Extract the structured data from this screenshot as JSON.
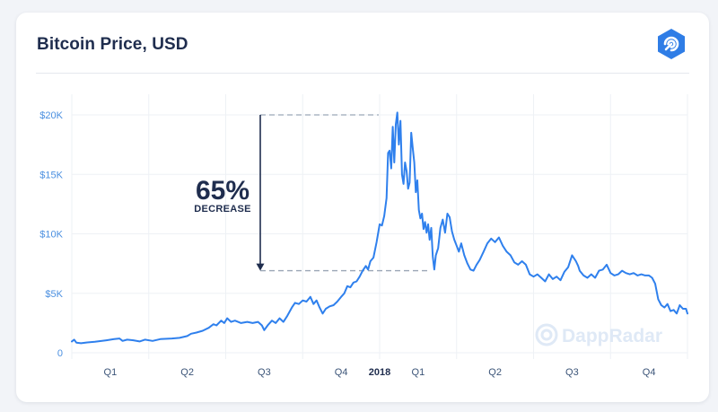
{
  "header": {
    "title": "Bitcoin Price, USD",
    "logo_icon": "dappradar-logo-icon"
  },
  "watermark": {
    "text": "DappRadar"
  },
  "annotation": {
    "value": "65%",
    "label": "DECREASE"
  },
  "colors": {
    "line": "#2f80ed",
    "title": "#1f2d4e",
    "y_tick": "#4a8fe0",
    "brand": "#2f7de6"
  },
  "chart_data": {
    "type": "line",
    "title": "Bitcoin Price, USD",
    "xlabel": "",
    "ylabel": "",
    "ylim": [
      0,
      20000
    ],
    "y_ticks": [
      {
        "value": 0,
        "label": "0"
      },
      {
        "value": 5000,
        "label": "$5K"
      },
      {
        "value": 10000,
        "label": "$10K"
      },
      {
        "value": 15000,
        "label": "$15K"
      },
      {
        "value": 20000,
        "label": "$20K"
      }
    ],
    "x_ticks": [
      {
        "t": 0.5,
        "label": "Q1",
        "bold": false
      },
      {
        "t": 1.5,
        "label": "Q2",
        "bold": false
      },
      {
        "t": 2.5,
        "label": "Q3",
        "bold": false
      },
      {
        "t": 3.5,
        "label": "Q4",
        "bold": false
      },
      {
        "t": 4.0,
        "label": "2018",
        "bold": true
      },
      {
        "t": 4.5,
        "label": "Q1",
        "bold": false
      },
      {
        "t": 5.5,
        "label": "Q2",
        "bold": false
      },
      {
        "t": 6.5,
        "label": "Q3",
        "bold": false
      },
      {
        "t": 7.5,
        "label": "Q4",
        "bold": false
      }
    ],
    "x_range": [
      0,
      8
    ],
    "grid": true,
    "legend": "none",
    "annotation_range": {
      "high": 20000,
      "low": 6900
    },
    "series": [
      {
        "points": [
          [
            0.0,
            950
          ],
          [
            0.03,
            1100
          ],
          [
            0.06,
            850
          ],
          [
            0.12,
            800
          ],
          [
            0.2,
            870
          ],
          [
            0.3,
            920
          ],
          [
            0.45,
            1050
          ],
          [
            0.55,
            1150
          ],
          [
            0.62,
            1200
          ],
          [
            0.66,
            1000
          ],
          [
            0.72,
            1100
          ],
          [
            0.8,
            1050
          ],
          [
            0.88,
            950
          ],
          [
            0.95,
            1100
          ],
          [
            1.05,
            1000
          ],
          [
            1.15,
            1150
          ],
          [
            1.3,
            1200
          ],
          [
            1.4,
            1250
          ],
          [
            1.5,
            1400
          ],
          [
            1.55,
            1600
          ],
          [
            1.62,
            1700
          ],
          [
            1.7,
            1850
          ],
          [
            1.78,
            2100
          ],
          [
            1.84,
            2400
          ],
          [
            1.88,
            2300
          ],
          [
            1.94,
            2700
          ],
          [
            1.98,
            2500
          ],
          [
            2.02,
            2900
          ],
          [
            2.07,
            2600
          ],
          [
            2.12,
            2700
          ],
          [
            2.2,
            2500
          ],
          [
            2.28,
            2600
          ],
          [
            2.35,
            2500
          ],
          [
            2.42,
            2600
          ],
          [
            2.47,
            2300
          ],
          [
            2.5,
            1900
          ],
          [
            2.55,
            2350
          ],
          [
            2.6,
            2700
          ],
          [
            2.65,
            2500
          ],
          [
            2.7,
            2900
          ],
          [
            2.75,
            2600
          ],
          [
            2.8,
            3100
          ],
          [
            2.86,
            3800
          ],
          [
            2.9,
            4200
          ],
          [
            2.95,
            4100
          ],
          [
            3.0,
            4400
          ],
          [
            3.05,
            4300
          ],
          [
            3.1,
            4700
          ],
          [
            3.14,
            4100
          ],
          [
            3.18,
            4400
          ],
          [
            3.22,
            3800
          ],
          [
            3.26,
            3300
          ],
          [
            3.3,
            3700
          ],
          [
            3.35,
            3900
          ],
          [
            3.4,
            4000
          ],
          [
            3.45,
            4300
          ],
          [
            3.5,
            4700
          ],
          [
            3.54,
            5000
          ],
          [
            3.58,
            5600
          ],
          [
            3.62,
            5500
          ],
          [
            3.66,
            5900
          ],
          [
            3.7,
            6000
          ],
          [
            3.74,
            6400
          ],
          [
            3.78,
            6900
          ],
          [
            3.82,
            7300
          ],
          [
            3.85,
            7000
          ],
          [
            3.88,
            7700
          ],
          [
            3.92,
            8000
          ],
          [
            3.96,
            9300
          ],
          [
            4.0,
            10800
          ],
          [
            4.03,
            10700
          ],
          [
            4.06,
            11500
          ],
          [
            4.09,
            13000
          ],
          [
            4.11,
            16800
          ],
          [
            4.13,
            17000
          ],
          [
            4.15,
            15500
          ],
          [
            4.17,
            19000
          ],
          [
            4.19,
            16000
          ],
          [
            4.21,
            19200
          ],
          [
            4.23,
            20200
          ],
          [
            4.25,
            17500
          ],
          [
            4.27,
            19500
          ],
          [
            4.29,
            15000
          ],
          [
            4.31,
            14200
          ],
          [
            4.33,
            16000
          ],
          [
            4.35,
            15300
          ],
          [
            4.37,
            13800
          ],
          [
            4.39,
            14300
          ],
          [
            4.41,
            18500
          ],
          [
            4.43,
            17200
          ],
          [
            4.45,
            16000
          ],
          [
            4.47,
            13500
          ],
          [
            4.49,
            14500
          ],
          [
            4.51,
            12000
          ],
          [
            4.53,
            11300
          ],
          [
            4.55,
            11700
          ],
          [
            4.57,
            10400
          ],
          [
            4.59,
            11000
          ],
          [
            4.61,
            10100
          ],
          [
            4.63,
            10800
          ],
          [
            4.65,
            9500
          ],
          [
            4.67,
            10500
          ],
          [
            4.69,
            8100
          ],
          [
            4.71,
            7000
          ],
          [
            4.73,
            8200
          ],
          [
            4.76,
            8800
          ],
          [
            4.79,
            10500
          ],
          [
            4.82,
            11200
          ],
          [
            4.85,
            10100
          ],
          [
            4.88,
            11700
          ],
          [
            4.91,
            11400
          ],
          [
            4.94,
            10200
          ],
          [
            4.97,
            9500
          ],
          [
            5.0,
            9000
          ],
          [
            5.03,
            8500
          ],
          [
            5.06,
            9200
          ],
          [
            5.1,
            8200
          ],
          [
            5.14,
            7500
          ],
          [
            5.18,
            7000
          ],
          [
            5.22,
            6900
          ],
          [
            5.26,
            7400
          ],
          [
            5.3,
            7800
          ],
          [
            5.35,
            8500
          ],
          [
            5.4,
            9200
          ],
          [
            5.45,
            9600
          ],
          [
            5.5,
            9300
          ],
          [
            5.55,
            9700
          ],
          [
            5.6,
            9000
          ],
          [
            5.65,
            8500
          ],
          [
            5.7,
            8200
          ],
          [
            5.75,
            7600
          ],
          [
            5.8,
            7400
          ],
          [
            5.85,
            7700
          ],
          [
            5.9,
            7400
          ],
          [
            5.95,
            6600
          ],
          [
            6.0,
            6400
          ],
          [
            6.05,
            6600
          ],
          [
            6.1,
            6300
          ],
          [
            6.15,
            6000
          ],
          [
            6.2,
            6600
          ],
          [
            6.25,
            6200
          ],
          [
            6.3,
            6400
          ],
          [
            6.35,
            6100
          ],
          [
            6.4,
            6800
          ],
          [
            6.45,
            7200
          ],
          [
            6.5,
            8200
          ],
          [
            6.55,
            7700
          ],
          [
            6.58,
            7300
          ],
          [
            6.6,
            6900
          ],
          [
            6.65,
            6500
          ],
          [
            6.7,
            6300
          ],
          [
            6.75,
            6600
          ],
          [
            6.8,
            6300
          ],
          [
            6.85,
            6900
          ],
          [
            6.9,
            7000
          ],
          [
            6.95,
            7400
          ],
          [
            7.0,
            6700
          ],
          [
            7.05,
            6500
          ],
          [
            7.1,
            6600
          ],
          [
            7.15,
            6900
          ],
          [
            7.2,
            6700
          ],
          [
            7.25,
            6600
          ],
          [
            7.3,
            6700
          ],
          [
            7.35,
            6500
          ],
          [
            7.4,
            6600
          ],
          [
            7.45,
            6500
          ],
          [
            7.5,
            6500
          ],
          [
            7.54,
            6300
          ],
          [
            7.58,
            5800
          ],
          [
            7.62,
            4500
          ],
          [
            7.66,
            4000
          ],
          [
            7.7,
            3800
          ],
          [
            7.74,
            4100
          ],
          [
            7.78,
            3500
          ],
          [
            7.82,
            3600
          ],
          [
            7.86,
            3300
          ],
          [
            7.9,
            4000
          ],
          [
            7.94,
            3700
          ],
          [
            7.98,
            3700
          ],
          [
            8.0,
            3300
          ]
        ]
      }
    ]
  }
}
